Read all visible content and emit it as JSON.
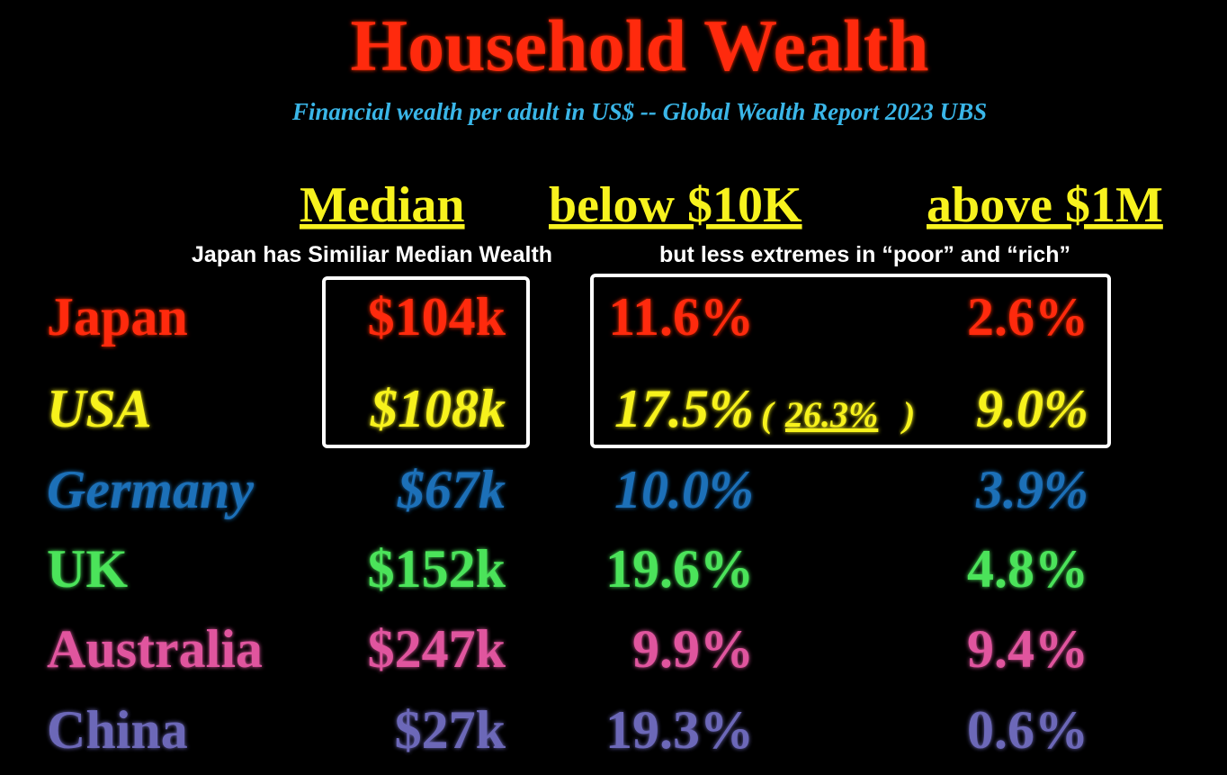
{
  "header": {
    "title": "Household Wealth",
    "subtitle": "Financial wealth per adult in US$ -- Global Wealth Report 2023 UBS"
  },
  "table": {
    "columns": [
      "Median",
      "below $10K",
      "above $1M"
    ],
    "notes": [
      "Japan has Similiar Median Wealth",
      "but less extremes in “poor” and “rich”"
    ],
    "rows": [
      {
        "country": "Japan",
        "median": "$104k",
        "below": "11.6%",
        "above": "2.6%",
        "color": "#ff2a0a",
        "italic": false
      },
      {
        "country": "USA",
        "median": "$108k",
        "below": "17.5%",
        "extra": {
          "open": "(",
          "value": "26.3%",
          "close": ")"
        },
        "above": "9.0%",
        "color": "#f7f21e",
        "italic": true
      },
      {
        "country": "Germany",
        "median": "$67k",
        "below": "10.0%",
        "above": "3.9%",
        "color": "#1c6fb8",
        "italic": true
      },
      {
        "country": "UK",
        "median": "$152k",
        "below": "19.6%",
        "above": "4.8%",
        "color": "#4be35a",
        "italic": false
      },
      {
        "country": "Australia",
        "median": "$247k",
        "below": "9.9%",
        "above": "9.4%",
        "color": "#e0549e",
        "italic": false
      },
      {
        "country": "China",
        "median": "$27k",
        "below": "19.3%",
        "above": "0.6%",
        "color": "#6c68b8",
        "italic": false
      }
    ]
  }
}
